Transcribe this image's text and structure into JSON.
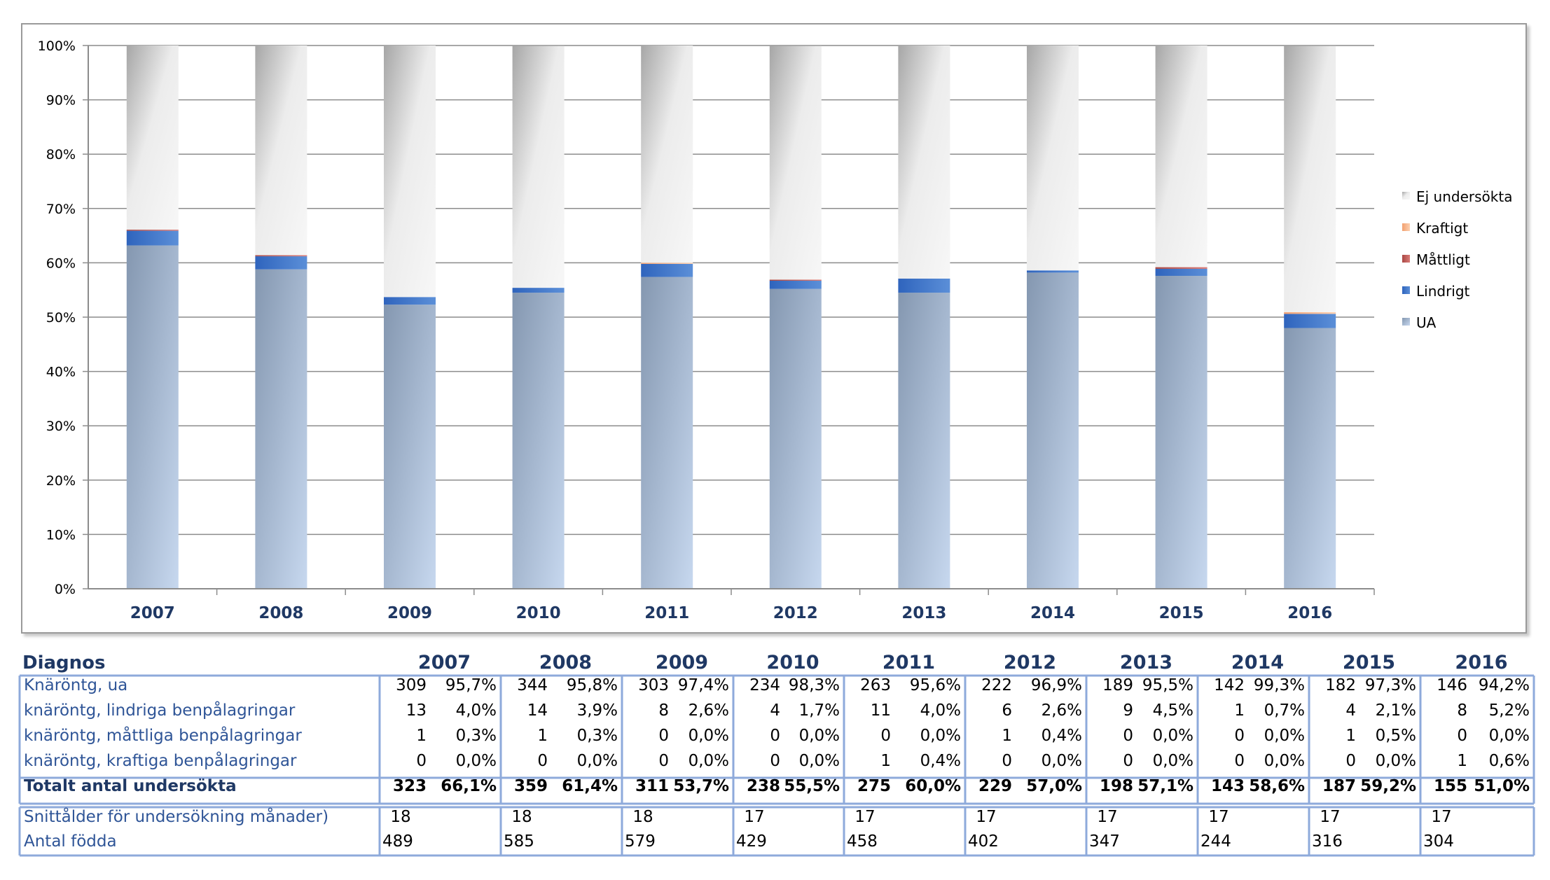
{
  "chart_data": {
    "type": "bar",
    "stacked": true,
    "normalized": true,
    "categories": [
      "2007",
      "2008",
      "2009",
      "2010",
      "2011",
      "2012",
      "2013",
      "2014",
      "2015",
      "2016"
    ],
    "y_ticks": [
      "0%",
      "10%",
      "20%",
      "30%",
      "40%",
      "50%",
      "60%",
      "70%",
      "80%",
      "90%",
      "100%"
    ],
    "ylim": [
      0,
      100
    ],
    "grid": true,
    "legend_position": "right",
    "series": [
      {
        "name": "UA",
        "values": [
          63.2,
          58.8,
          52.3,
          54.5,
          57.4,
          55.2,
          54.5,
          58.2,
          57.6,
          48.0
        ],
        "color": "#9fb4d3"
      },
      {
        "name": "Lindrigt",
        "values": [
          2.7,
          2.4,
          1.4,
          0.9,
          2.4,
          1.5,
          2.6,
          0.4,
          1.3,
          2.6
        ],
        "color": "#3f72c4"
      },
      {
        "name": "Måttligt",
        "values": [
          0.2,
          0.2,
          0.0,
          0.0,
          0.0,
          0.2,
          0.0,
          0.0,
          0.3,
          0.0
        ],
        "color": "#c0504d"
      },
      {
        "name": "Kraftigt",
        "values": [
          0.0,
          0.0,
          0.0,
          0.0,
          0.2,
          0.0,
          0.0,
          0.0,
          0.0,
          0.3
        ],
        "color": "#f5b48c"
      },
      {
        "name": "Ej undersökta",
        "values": [
          33.9,
          38.6,
          46.3,
          44.5,
          40.0,
          43.0,
          42.9,
          41.4,
          40.8,
          49.0
        ],
        "color": "#e6e6e6"
      }
    ],
    "legend_order": [
      "Ej undersökta",
      "Kraftigt",
      "Måttligt",
      "Lindrigt",
      "UA"
    ]
  },
  "table": {
    "header_label": "Diagnos",
    "years": [
      "2007",
      "2008",
      "2009",
      "2010",
      "2011",
      "2012",
      "2013",
      "2014",
      "2015",
      "2016"
    ],
    "rows": [
      {
        "label": "Knäröntg, ua",
        "bold": false,
        "cells": [
          [
            "309",
            "95,7%"
          ],
          [
            "344",
            "95,8%"
          ],
          [
            "303",
            "97,4%"
          ],
          [
            "234",
            "98,3%"
          ],
          [
            "263",
            "95,6%"
          ],
          [
            "222",
            "96,9%"
          ],
          [
            "189",
            "95,5%"
          ],
          [
            "142",
            "99,3%"
          ],
          [
            "182",
            "97,3%"
          ],
          [
            "146",
            "94,2%"
          ]
        ]
      },
      {
        "label": "knäröntg, lindriga benpålagringar",
        "bold": false,
        "cells": [
          [
            "13",
            "4,0%"
          ],
          [
            "14",
            "3,9%"
          ],
          [
            "8",
            "2,6%"
          ],
          [
            "4",
            "1,7%"
          ],
          [
            "11",
            "4,0%"
          ],
          [
            "6",
            "2,6%"
          ],
          [
            "9",
            "4,5%"
          ],
          [
            "1",
            "0,7%"
          ],
          [
            "4",
            "2,1%"
          ],
          [
            "8",
            "5,2%"
          ]
        ]
      },
      {
        "label": "knäröntg, måttliga benpålagringar",
        "bold": false,
        "cells": [
          [
            "1",
            "0,3%"
          ],
          [
            "1",
            "0,3%"
          ],
          [
            "0",
            "0,0%"
          ],
          [
            "0",
            "0,0%"
          ],
          [
            "0",
            "0,0%"
          ],
          [
            "1",
            "0,4%"
          ],
          [
            "0",
            "0,0%"
          ],
          [
            "0",
            "0,0%"
          ],
          [
            "1",
            "0,5%"
          ],
          [
            "0",
            "0,0%"
          ]
        ]
      },
      {
        "label": "knäröntg, kraftiga benpålagringar",
        "bold": false,
        "cells": [
          [
            "0",
            "0,0%"
          ],
          [
            "0",
            "0,0%"
          ],
          [
            "0",
            "0,0%"
          ],
          [
            "0",
            "0,0%"
          ],
          [
            "1",
            "0,4%"
          ],
          [
            "0",
            "0,0%"
          ],
          [
            "0",
            "0,0%"
          ],
          [
            "0",
            "0,0%"
          ],
          [
            "0",
            "0,0%"
          ],
          [
            "1",
            "0,6%"
          ]
        ]
      },
      {
        "label": "Totalt antal undersökta",
        "bold": true,
        "cells": [
          [
            "323",
            "66,1%"
          ],
          [
            "359",
            "61,4%"
          ],
          [
            "311",
            "53,7%"
          ],
          [
            "238",
            "55,5%"
          ],
          [
            "275",
            "60,0%"
          ],
          [
            "229",
            "57,0%"
          ],
          [
            "198",
            "57,1%"
          ],
          [
            "143",
            "58,6%"
          ],
          [
            "187",
            "59,2%"
          ],
          [
            "155",
            "51,0%"
          ]
        ]
      }
    ],
    "extra_rows": [
      {
        "label": "Snittålder för undersökning månader)",
        "cells": [
          "18",
          "18",
          "18",
          "17",
          "17",
          "17",
          "17",
          "17",
          "17",
          "17"
        ]
      },
      {
        "label": "Antal födda",
        "cells": [
          "489",
          "585",
          "579",
          "429",
          "458",
          "402",
          "347",
          "244",
          "316",
          "304"
        ]
      }
    ]
  }
}
